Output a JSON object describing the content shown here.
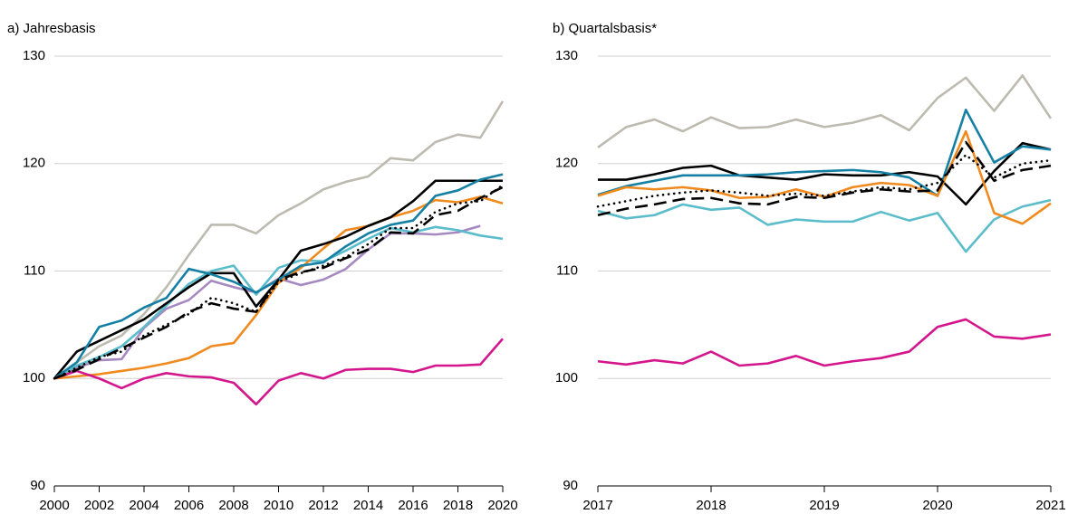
{
  "chart_data": [
    {
      "type": "line",
      "title": "a) Jahresbasis",
      "x": [
        2000,
        2001,
        2002,
        2003,
        2004,
        2005,
        2006,
        2007,
        2008,
        2009,
        2010,
        2011,
        2012,
        2013,
        2014,
        2015,
        2016,
        2017,
        2018,
        2019,
        2020
      ],
      "xlim": [
        2000,
        2020
      ],
      "xticks": [
        2000,
        2002,
        2004,
        2006,
        2008,
        2010,
        2012,
        2014,
        2016,
        2018,
        2020
      ],
      "ylim": [
        90,
        130
      ],
      "yticks": [
        90,
        100,
        110,
        120,
        130
      ],
      "grid": true,
      "series": [
        {
          "color": "#bdbab0",
          "style": "solid",
          "values": [
            100,
            101.5,
            103,
            104,
            106,
            108.5,
            111.5,
            114.3,
            114.3,
            113.5,
            115.2,
            116.3,
            117.6,
            118.3,
            118.8,
            120.5,
            120.3,
            122,
            122.7,
            122.4,
            125.8
          ]
        },
        {
          "color": "#a689c0",
          "style": "solid",
          "values": [
            100,
            101,
            101.7,
            101.8,
            104.7,
            106.5,
            107.3,
            109.1,
            108.5,
            108,
            109.3,
            108.7,
            109.2,
            110.2,
            112,
            113.5,
            113.5,
            113.4,
            113.6,
            114.2,
            null
          ]
        },
        {
          "color": "#5bbccb",
          "style": "solid",
          "values": [
            100,
            101.2,
            102,
            103,
            104.8,
            106.8,
            108.8,
            110,
            110.5,
            107.8,
            110.3,
            111,
            110.9,
            111.9,
            113,
            114,
            113.6,
            114.1,
            113.8,
            113.3,
            113
          ]
        },
        {
          "color": "#f08a1e",
          "style": "solid",
          "values": [
            100,
            100.2,
            100.4,
            100.7,
            101,
            101.4,
            101.9,
            103,
            103.3,
            105.9,
            108.9,
            110.3,
            112.1,
            113.8,
            114.2,
            115,
            115.6,
            116.6,
            116.4,
            116.9,
            116.3
          ]
        },
        {
          "color": "#000000",
          "style": "solid",
          "values": [
            100,
            102.5,
            103.5,
            104.5,
            105.5,
            107,
            108.5,
            109.8,
            109.8,
            106.7,
            109.2,
            111.9,
            112.5,
            113.2,
            114.2,
            115,
            116.5,
            118.4,
            118.4,
            118.4,
            118.4
          ]
        },
        {
          "color": "#1580a4",
          "style": "solid",
          "values": [
            100,
            101.5,
            104.8,
            105.4,
            106.6,
            107.5,
            110.2,
            109.7,
            109,
            108,
            109.2,
            110.5,
            110.8,
            112.3,
            113.5,
            114.3,
            114.7,
            117,
            117.5,
            118.5,
            119
          ]
        },
        {
          "color": "#d4168c",
          "style": "solid",
          "values": [
            100,
            100.7,
            100,
            99.1,
            100,
            100.5,
            100.2,
            100.1,
            99.6,
            97.6,
            99.8,
            100.5,
            100,
            100.8,
            100.9,
            100.9,
            100.6,
            101.2,
            101.2,
            101.3,
            103.7
          ]
        },
        {
          "color": "#000000",
          "style": "dashed",
          "values": [
            100,
            100.8,
            101.8,
            102.8,
            103.8,
            104.8,
            106.2,
            107,
            106.5,
            106.2,
            109.2,
            109.9,
            110.3,
            111.2,
            112,
            113.6,
            113.5,
            115.2,
            115.6,
            116.8,
            117.8
          ]
        },
        {
          "color": "#000000",
          "style": "dotted",
          "values": [
            100,
            101,
            102,
            102.5,
            104,
            105,
            106,
            107.5,
            107,
            106.2,
            109,
            109.8,
            110.5,
            111.3,
            112.5,
            114,
            114,
            115.5,
            116.3,
            116.5,
            118
          ]
        }
      ]
    },
    {
      "type": "line",
      "title": "b) Quartalsbasis*",
      "x": [
        2017,
        2017.25,
        2017.5,
        2017.75,
        2018,
        2018.25,
        2018.5,
        2018.75,
        2019,
        2019.25,
        2019.5,
        2019.75,
        2020,
        2020.25,
        2020.5,
        2020.75,
        2021
      ],
      "xlim": [
        2017,
        2021
      ],
      "xticks": [
        2017,
        2018,
        2019,
        2020,
        2021
      ],
      "ylim": [
        90,
        130
      ],
      "yticks": [
        90,
        100,
        110,
        120,
        130
      ],
      "grid": true,
      "series": [
        {
          "color": "#bdbab0",
          "style": "solid",
          "values": [
            121.5,
            123.4,
            124.1,
            123,
            124.3,
            123.3,
            123.4,
            124.1,
            123.4,
            123.8,
            124.5,
            123.1,
            126.1,
            128,
            124.9,
            128.2,
            124.2
          ]
        },
        {
          "color": "#5bbccb",
          "style": "solid",
          "values": [
            115.6,
            114.9,
            115.2,
            116.2,
            115.7,
            115.9,
            114.3,
            114.8,
            114.6,
            114.6,
            115.5,
            114.7,
            115.4,
            111.8,
            114.8,
            116,
            116.6
          ]
        },
        {
          "color": "#000000",
          "style": "solid",
          "values": [
            118.5,
            118.5,
            119,
            119.6,
            119.8,
            118.9,
            118.7,
            118.5,
            119,
            118.9,
            118.9,
            119.2,
            118.8,
            116.2,
            119.3,
            121.9,
            121.3
          ]
        },
        {
          "color": "#1580a4",
          "style": "solid",
          "values": [
            117.1,
            117.9,
            118.4,
            118.9,
            118.9,
            118.9,
            119,
            119.2,
            119.3,
            119.4,
            119.2,
            118.7,
            117,
            125,
            120.1,
            121.6,
            121.3
          ]
        },
        {
          "color": "#f08a1e",
          "style": "solid",
          "values": [
            117,
            117.8,
            117.6,
            117.8,
            117.5,
            116.8,
            116.9,
            117.6,
            116.9,
            117.8,
            118.2,
            118,
            117,
            123,
            115.4,
            114.4,
            116.3
          ]
        },
        {
          "color": "#d4168c",
          "style": "solid",
          "values": [
            101.6,
            101.3,
            101.7,
            101.4,
            102.5,
            101.2,
            101.4,
            102.1,
            101.2,
            101.6,
            101.9,
            102.5,
            104.8,
            105.5,
            103.9,
            103.7,
            104.1
          ]
        },
        {
          "color": "#000000",
          "style": "dashed",
          "values": [
            115.2,
            115.8,
            116.2,
            116.7,
            116.8,
            116.3,
            116.2,
            116.9,
            116.8,
            117.3,
            117.6,
            117.4,
            117.5,
            122,
            118.4,
            119.4,
            119.8
          ]
        },
        {
          "color": "#000000",
          "style": "dotted",
          "values": [
            116,
            116.5,
            117,
            117.3,
            117.5,
            117.3,
            117,
            117.2,
            117,
            117.4,
            117.8,
            117.6,
            118.2,
            120.8,
            118.7,
            120,
            120.3
          ]
        }
      ]
    }
  ]
}
